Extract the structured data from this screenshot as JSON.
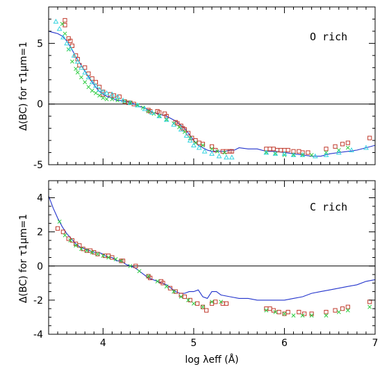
{
  "colors": {
    "square": "#c0392b",
    "cross": "#2ecc40",
    "triangle": "#35d4e0",
    "model_line": "#2233cc",
    "axis": "#000000",
    "zero_line": "#000000"
  },
  "xlabel": "log λeff (Å)",
  "chart_data": [
    {
      "type": "scatter",
      "title": "",
      "annotation": "O rich",
      "ylabel": "Δ(BC) for τ1μm=1",
      "xlim": [
        3.4,
        7.0
      ],
      "ylim": [
        -5,
        8
      ],
      "xticks": [],
      "yticks": [
        -5,
        0,
        5
      ],
      "zero_line": 0,
      "series": [
        {
          "marker": "square",
          "color": "#c0392b",
          "x": [
            3.58,
            3.58,
            3.62,
            3.64,
            3.66,
            3.7,
            3.72,
            3.74,
            3.8,
            3.84,
            3.88,
            3.92,
            3.96,
            4.0,
            4.0,
            4.08,
            4.12,
            4.18,
            4.24,
            4.28,
            4.3,
            4.34,
            4.5,
            4.52,
            4.6,
            4.62,
            4.68,
            4.7,
            4.8,
            4.82,
            4.86,
            4.88,
            4.9,
            4.94,
            4.98,
            5.02,
            5.06,
            5.1,
            5.2,
            5.24,
            5.32,
            5.36,
            5.4,
            5.42,
            5.8,
            5.84,
            5.88,
            5.92,
            5.96,
            6.0,
            6.04,
            6.1,
            6.16,
            6.2,
            6.26,
            6.46,
            6.56,
            6.64,
            6.7,
            6.94
          ],
          "y": [
            6.9,
            6.5,
            5.4,
            5.2,
            4.8,
            4.0,
            3.7,
            3.2,
            3.0,
            2.5,
            2.1,
            1.8,
            1.4,
            1.0,
            0.8,
            0.8,
            0.7,
            0.6,
            0.2,
            0.1,
            0.1,
            0.0,
            -0.5,
            -0.6,
            -0.6,
            -0.7,
            -0.8,
            -1.0,
            -1.5,
            -1.6,
            -1.8,
            -2.0,
            -2.1,
            -2.4,
            -2.8,
            -3.0,
            -3.2,
            -3.3,
            -3.5,
            -3.8,
            -3.9,
            -3.9,
            -3.9,
            -3.9,
            -3.7,
            -3.7,
            -3.7,
            -3.8,
            -3.8,
            -3.8,
            -3.8,
            -3.9,
            -3.9,
            -4.0,
            -4.0,
            -3.7,
            -3.5,
            -3.3,
            -3.2,
            -2.8
          ]
        },
        {
          "marker": "cross",
          "color": "#2ecc40",
          "x": [
            3.55,
            3.58,
            3.62,
            3.66,
            3.7,
            3.72,
            3.76,
            3.8,
            3.84,
            3.88,
            3.92,
            3.96,
            4.0,
            4.04,
            4.1,
            4.16,
            4.24,
            4.3,
            4.38,
            4.44,
            4.5,
            4.56,
            4.62,
            4.7,
            4.78,
            4.84,
            4.9,
            4.96,
            5.02,
            5.1,
            5.2,
            5.26,
            5.34,
            5.8,
            5.9,
            6.0,
            6.1,
            6.2,
            6.3,
            6.46,
            6.6,
            6.7
          ],
          "y": [
            6.6,
            5.8,
            4.5,
            3.5,
            2.9,
            2.6,
            2.2,
            1.8,
            1.4,
            1.1,
            0.9,
            0.7,
            0.5,
            0.4,
            0.4,
            0.3,
            0.2,
            0.1,
            -0.1,
            -0.3,
            -0.6,
            -0.8,
            -1.0,
            -1.3,
            -1.6,
            -1.9,
            -2.3,
            -2.8,
            -3.2,
            -3.4,
            -3.7,
            -3.9,
            -4.0,
            -4.0,
            -4.1,
            -4.2,
            -4.2,
            -4.2,
            -4.2,
            -4.0,
            -3.8,
            -3.6
          ]
        },
        {
          "marker": "triangle",
          "color": "#35d4e0",
          "x": [
            3.48,
            3.52,
            3.56,
            3.6,
            3.64,
            3.68,
            3.72,
            3.76,
            3.8,
            3.84,
            3.88,
            3.92,
            3.96,
            4.0,
            4.04,
            4.1,
            4.16,
            4.22,
            4.3,
            4.38,
            4.46,
            4.54,
            4.62,
            4.7,
            4.78,
            4.86,
            4.92,
            4.96,
            5.0,
            5.06,
            5.12,
            5.2,
            5.28,
            5.36,
            5.42,
            5.8,
            5.9,
            6.0,
            6.1,
            6.2,
            6.34,
            6.46,
            6.6,
            6.74,
            6.9
          ],
          "y": [
            6.8,
            6.2,
            5.5,
            5.0,
            4.6,
            4.0,
            3.5,
            3.0,
            2.6,
            2.2,
            1.8,
            1.5,
            1.2,
            1.0,
            0.9,
            0.8,
            0.6,
            0.3,
            0.1,
            -0.1,
            -0.4,
            -0.7,
            -1.0,
            -1.3,
            -1.7,
            -2.1,
            -2.6,
            -3.0,
            -3.4,
            -3.6,
            -3.9,
            -4.1,
            -4.3,
            -4.4,
            -4.4,
            -4.0,
            -4.1,
            -4.1,
            -4.2,
            -4.2,
            -4.3,
            -4.2,
            -4.0,
            -3.8,
            -3.6
          ]
        }
      ],
      "line": {
        "color": "#2233cc",
        "x": [
          3.4,
          3.45,
          3.5,
          3.55,
          3.6,
          3.65,
          3.7,
          3.75,
          3.8,
          3.85,
          3.9,
          3.95,
          4.0,
          4.05,
          4.1,
          4.15,
          4.2,
          4.25,
          4.3,
          4.35,
          4.4,
          4.45,
          4.5,
          4.55,
          4.6,
          4.65,
          4.7,
          4.75,
          4.8,
          4.85,
          4.9,
          4.95,
          5.0,
          5.05,
          5.1,
          5.15,
          5.2,
          5.25,
          5.3,
          5.35,
          5.4,
          5.45,
          5.5,
          5.6,
          5.7,
          5.8,
          5.9,
          6.0,
          6.1,
          6.2,
          6.3,
          6.4,
          6.5,
          6.6,
          6.7,
          6.8,
          6.9,
          7.0
        ],
        "y": [
          6.0,
          5.9,
          5.8,
          5.6,
          5.2,
          4.6,
          3.9,
          3.3,
          2.7,
          2.1,
          1.6,
          1.1,
          0.8,
          0.6,
          0.5,
          0.3,
          0.3,
          0.2,
          0.1,
          0.0,
          -0.2,
          -0.3,
          -0.5,
          -0.7,
          -0.8,
          -0.9,
          -1.0,
          -1.2,
          -1.4,
          -1.7,
          -2.0,
          -2.5,
          -3.0,
          -3.4,
          -3.6,
          -3.8,
          -3.9,
          -3.9,
          -3.9,
          -3.9,
          -3.8,
          -3.8,
          -3.6,
          -3.7,
          -3.7,
          -3.9,
          -3.9,
          -4.0,
          -4.1,
          -4.2,
          -4.3,
          -4.3,
          -4.1,
          -4.0,
          -3.9,
          -3.8,
          -3.6,
          -3.4
        ]
      }
    },
    {
      "type": "scatter",
      "title": "",
      "annotation": "C rich",
      "ylabel": "Δ(BC) for τ1μm=1",
      "xlim": [
        3.4,
        7.0
      ],
      "ylim": [
        -4,
        5
      ],
      "xticks": [
        4,
        5,
        6,
        7
      ],
      "yticks": [
        -4,
        -2,
        0,
        2,
        4
      ],
      "zero_line": 0,
      "series": [
        {
          "marker": "square",
          "color": "#c0392b",
          "x": [
            3.5,
            3.56,
            3.62,
            3.66,
            3.7,
            3.74,
            3.78,
            3.82,
            3.86,
            3.9,
            3.94,
            4.02,
            4.06,
            4.1,
            4.2,
            4.22,
            4.36,
            4.5,
            4.52,
            4.64,
            4.66,
            4.74,
            4.8,
            4.86,
            4.9,
            4.96,
            5.04,
            5.1,
            5.14,
            5.2,
            5.24,
            5.32,
            5.36,
            5.8,
            5.84,
            5.88,
            5.94,
            6.0,
            6.04,
            6.16,
            6.22,
            6.3,
            6.46,
            6.56,
            6.64,
            6.7,
            6.94
          ],
          "y": [
            2.2,
            2.0,
            1.6,
            1.5,
            1.3,
            1.2,
            1.0,
            0.9,
            0.9,
            0.8,
            0.7,
            0.6,
            0.6,
            0.5,
            0.3,
            0.3,
            0.0,
            -0.6,
            -0.7,
            -0.9,
            -1.0,
            -1.3,
            -1.5,
            -1.7,
            -1.8,
            -2.0,
            -2.2,
            -2.4,
            -2.6,
            -2.2,
            -2.1,
            -2.2,
            -2.2,
            -2.5,
            -2.5,
            -2.6,
            -2.7,
            -2.8,
            -2.7,
            -2.7,
            -2.8,
            -2.8,
            -2.7,
            -2.6,
            -2.5,
            -2.4,
            -2.1
          ]
        },
        {
          "marker": "cross",
          "color": "#2ecc40",
          "x": [
            3.52,
            3.58,
            3.64,
            3.7,
            3.76,
            3.82,
            3.88,
            3.94,
            4.0,
            4.06,
            4.14,
            4.2,
            4.3,
            4.4,
            4.5,
            4.6,
            4.7,
            4.78,
            4.86,
            4.94,
            5.0,
            5.1,
            5.2,
            5.3,
            5.8,
            5.9,
            6.0,
            6.1,
            6.2,
            6.3,
            6.46,
            6.6,
            6.7,
            6.94
          ],
          "y": [
            2.6,
            1.8,
            1.5,
            1.2,
            1.0,
            0.9,
            0.8,
            0.7,
            0.6,
            0.5,
            0.4,
            0.3,
            0.0,
            -0.3,
            -0.6,
            -0.9,
            -1.2,
            -1.5,
            -1.8,
            -2.0,
            -2.2,
            -2.4,
            -2.1,
            -2.1,
            -2.6,
            -2.7,
            -2.8,
            -2.9,
            -2.9,
            -2.9,
            -2.9,
            -2.7,
            -2.6,
            -2.4
          ]
        }
      ],
      "line": {
        "color": "#2233cc",
        "x": [
          3.4,
          3.45,
          3.5,
          3.55,
          3.6,
          3.65,
          3.7,
          3.75,
          3.8,
          3.85,
          3.9,
          3.95,
          4.0,
          4.05,
          4.1,
          4.15,
          4.2,
          4.25,
          4.3,
          4.35,
          4.4,
          4.45,
          4.5,
          4.55,
          4.6,
          4.65,
          4.7,
          4.75,
          4.8,
          4.85,
          4.9,
          4.95,
          5.0,
          5.05,
          5.1,
          5.15,
          5.2,
          5.25,
          5.3,
          5.4,
          5.5,
          5.6,
          5.7,
          5.8,
          5.9,
          6.0,
          6.1,
          6.2,
          6.3,
          6.4,
          6.5,
          6.6,
          6.7,
          6.8,
          6.9,
          7.0
        ],
        "y": [
          4.1,
          3.4,
          2.8,
          2.3,
          1.9,
          1.6,
          1.3,
          1.1,
          1.0,
          0.9,
          0.8,
          0.8,
          0.7,
          0.5,
          0.5,
          0.3,
          0.3,
          0.1,
          0.0,
          -0.1,
          -0.3,
          -0.5,
          -0.7,
          -0.8,
          -0.9,
          -1.0,
          -1.1,
          -1.3,
          -1.5,
          -1.6,
          -1.6,
          -1.5,
          -1.5,
          -1.4,
          -1.8,
          -1.9,
          -1.5,
          -1.5,
          -1.7,
          -1.8,
          -1.9,
          -1.9,
          -2.0,
          -2.0,
          -2.0,
          -2.0,
          -1.9,
          -1.8,
          -1.6,
          -1.5,
          -1.4,
          -1.3,
          -1.2,
          -1.1,
          -0.9,
          -0.8
        ]
      }
    }
  ]
}
